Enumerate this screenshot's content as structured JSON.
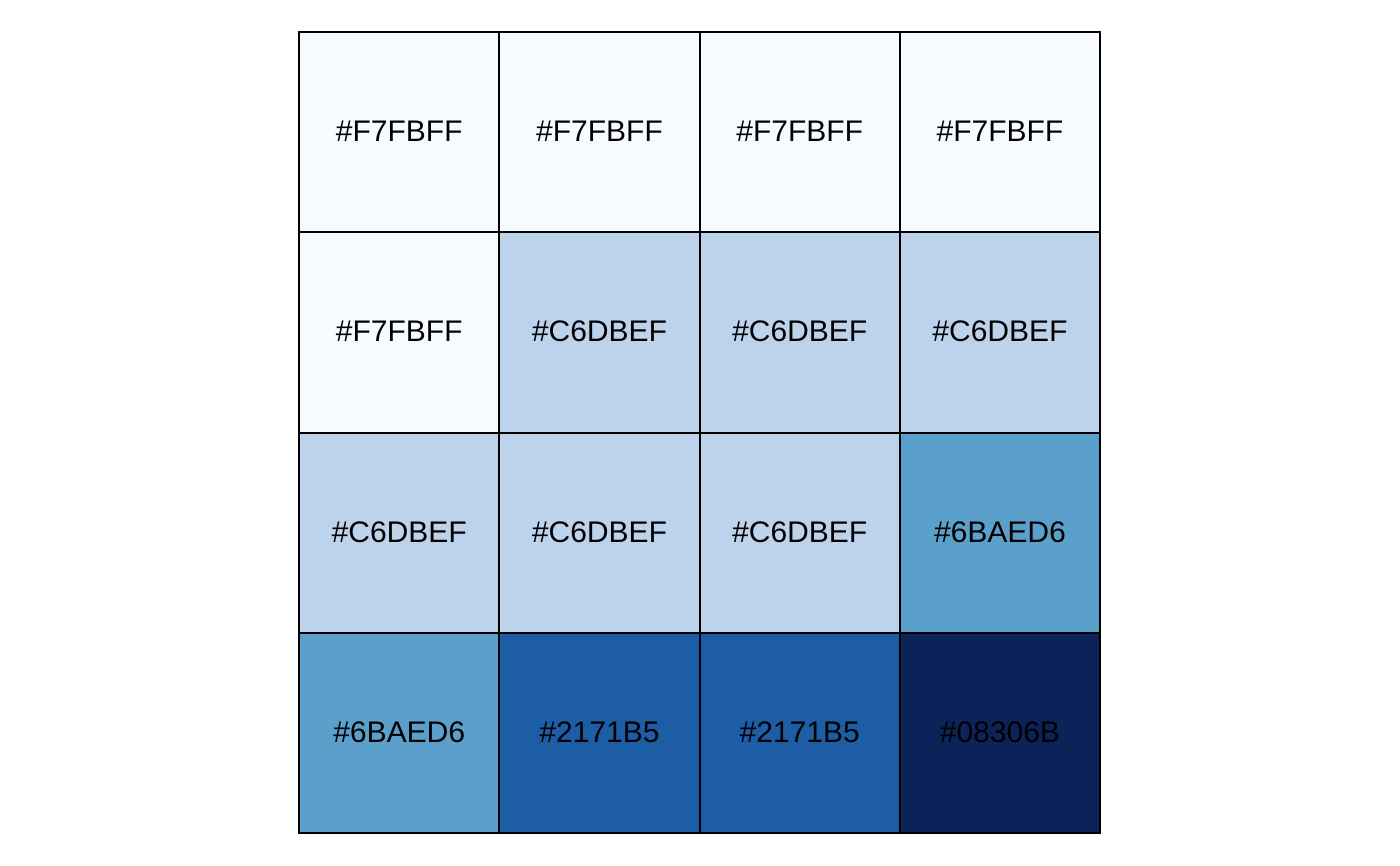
{
  "palette": {
    "swatches": [
      {
        "label": "#F7FBFF",
        "fill": "#F7FBFF"
      },
      {
        "label": "#F7FBFF",
        "fill": "#F7FBFF"
      },
      {
        "label": "#F7FBFF",
        "fill": "#F7FBFF"
      },
      {
        "label": "#F7FBFF",
        "fill": "#F7FBFF"
      },
      {
        "label": "#F7FBFF",
        "fill": "#F7FBFF"
      },
      {
        "label": "#C6DBEF",
        "fill": "#BDD2EB"
      },
      {
        "label": "#C6DBEF",
        "fill": "#BDD2EB"
      },
      {
        "label": "#C6DBEF",
        "fill": "#BDD2EB"
      },
      {
        "label": "#C6DBEF",
        "fill": "#BDD2EB"
      },
      {
        "label": "#C6DBEF",
        "fill": "#BDD2EB"
      },
      {
        "label": "#C6DBEF",
        "fill": "#BDD2EB"
      },
      {
        "label": "#6BAED6",
        "fill": "#5B9FCB"
      },
      {
        "label": "#6BAED6",
        "fill": "#5B9FCB"
      },
      {
        "label": "#2171B5",
        "fill": "#1C5DA6"
      },
      {
        "label": "#2171B5",
        "fill": "#1C5DA6"
      },
      {
        "label": "#08306B",
        "fill": "#0B2359"
      }
    ]
  }
}
